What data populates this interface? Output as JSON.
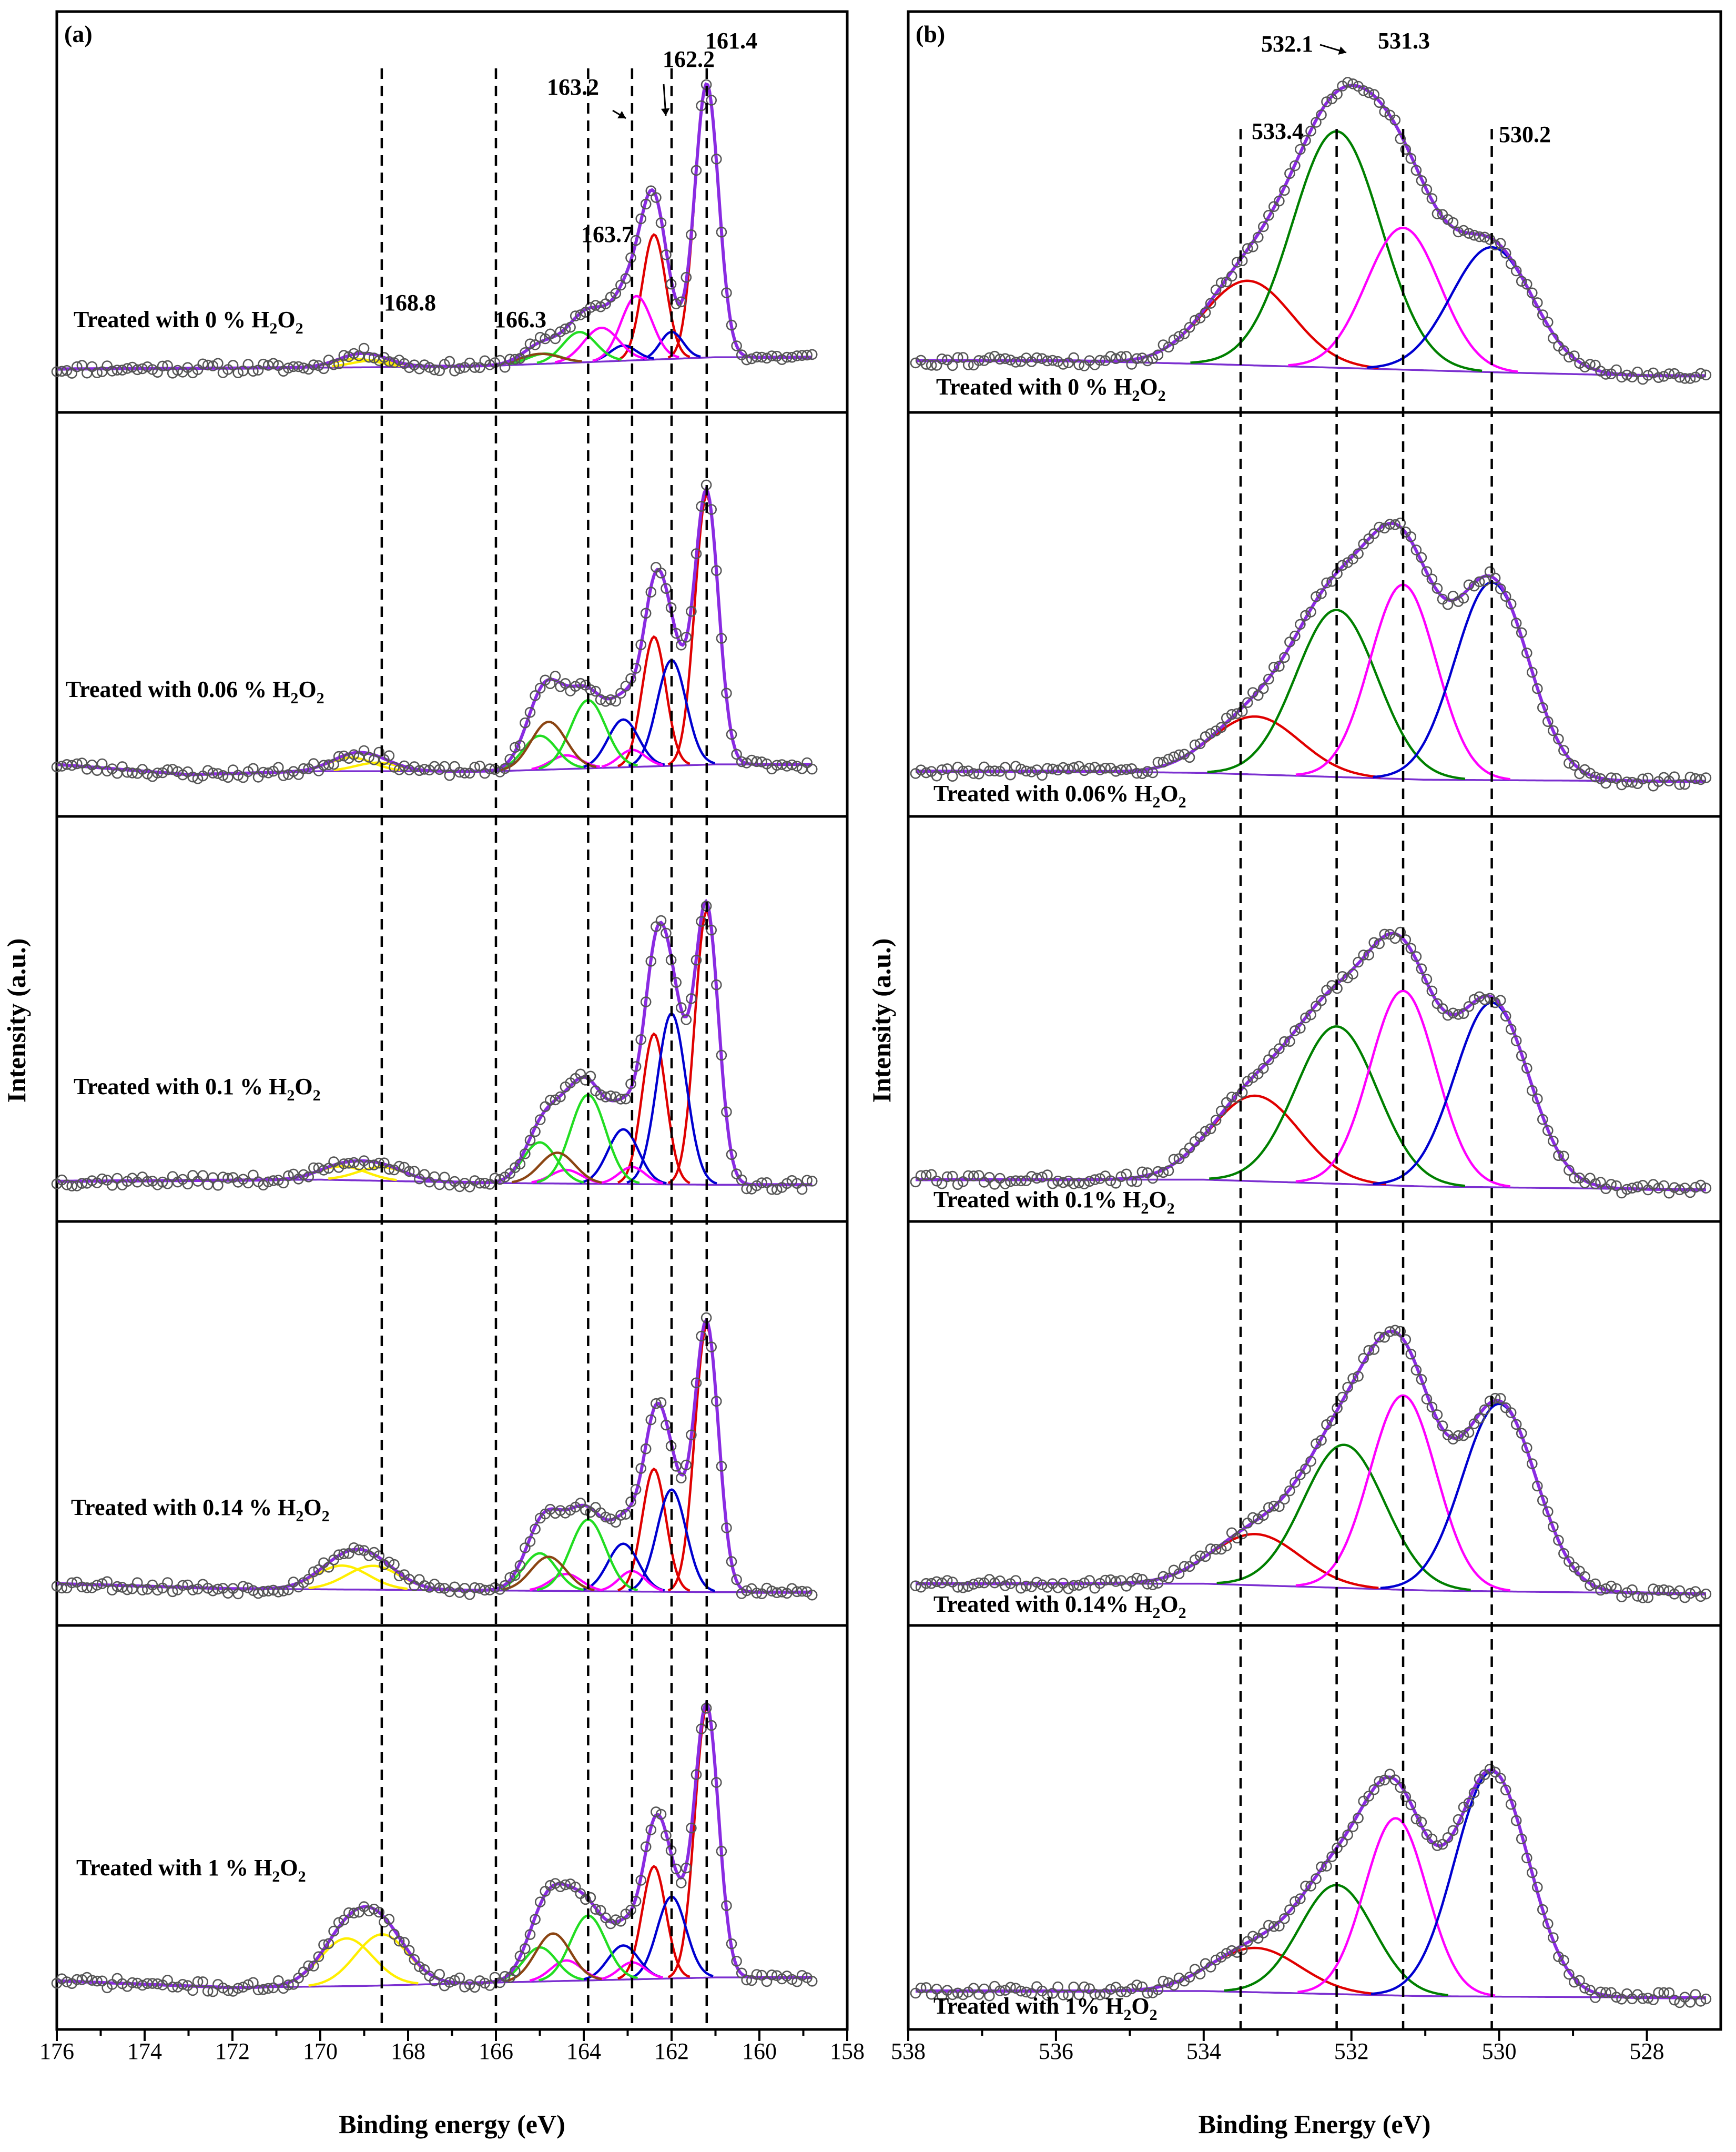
{
  "chart_data": [
    {
      "id": "a",
      "type": "line",
      "panel_label": "(a)",
      "title": "",
      "xlabel": "Binding energy (eV)",
      "ylabel": "Intensity (a.u.)",
      "xlim": [
        176,
        158
      ],
      "xticks": [
        176,
        174,
        172,
        170,
        168,
        166,
        164,
        162,
        160,
        158
      ],
      "reference_lines": [
        168.6,
        166.0,
        163.9,
        162.9,
        162.0,
        161.2
      ],
      "peak_labels": [
        {
          "text": "161.4",
          "x": 161.2
        },
        {
          "text": "162.2",
          "x": 162.0
        },
        {
          "text": "163.2",
          "x": 162.9
        },
        {
          "text": "163.7",
          "x": 163.9
        },
        {
          "text": "166.3",
          "x": 166.0
        },
        {
          "text": "168.8",
          "x": 168.6
        }
      ],
      "component_colors": {
        "S1": "#e00000",
        "S2": "#0000d0",
        "S3": "#ff00ff",
        "S4": "#22dd22",
        "S5": "#8b4513",
        "S6": "#ffee00"
      },
      "series": [
        {
          "name": "Treated with 0 % H2O2",
          "label": "Treated with 0 % H",
          "label_sub1": "2",
          "label_mid": "O",
          "label_sub2": "2",
          "noise_seed": 11,
          "baseline": [
            [
              176,
              0.035
            ],
            [
              169,
              0.04
            ],
            [
              166,
              0.045
            ],
            [
              161,
              0.07
            ],
            [
              158.8,
              0.07
            ]
          ],
          "components": [
            {
              "key": "S1",
              "center": 161.2,
              "height": 0.81,
              "width": 0.27
            },
            {
              "key": "S1",
              "center": 162.4,
              "height": 0.37,
              "width": 0.27
            },
            {
              "key": "S2",
              "center": 162.0,
              "height": 0.08,
              "width": 0.26
            },
            {
              "key": "S2",
              "center": 163.1,
              "height": 0.045,
              "width": 0.3
            },
            {
              "key": "S3",
              "center": 162.8,
              "height": 0.19,
              "width": 0.35
            },
            {
              "key": "S3",
              "center": 163.6,
              "height": 0.1,
              "width": 0.4
            },
            {
              "key": "S4",
              "center": 164.1,
              "height": 0.09,
              "width": 0.38
            },
            {
              "key": "S4",
              "center": 164.9,
              "height": 0.03,
              "width": 0.38
            },
            {
              "key": "S5",
              "center": 165.0,
              "height": 0.03,
              "width": 0.45
            },
            {
              "key": "S6",
              "center": 169.2,
              "height": 0.025,
              "width": 0.5
            },
            {
              "key": "S6",
              "center": 168.8,
              "height": 0.02,
              "width": 0.5
            }
          ]
        },
        {
          "name": "Treated with 0.06 % H2O2",
          "label": "Treated with 0.06 % H",
          "label_sub1": "2",
          "label_mid": "O",
          "label_sub2": "2",
          "noise_seed": 23,
          "baseline": [
            [
              176,
              0.06
            ],
            [
              173,
              0.03
            ],
            [
              170,
              0.04
            ],
            [
              166,
              0.04
            ],
            [
              161,
              0.06
            ],
            [
              159,
              0.06
            ]
          ],
          "components": [
            {
              "key": "S1",
              "center": 161.2,
              "height": 0.79,
              "width": 0.27
            },
            {
              "key": "S1",
              "center": 162.4,
              "height": 0.38,
              "width": 0.27
            },
            {
              "key": "S2",
              "center": 162.0,
              "height": 0.31,
              "width": 0.33
            },
            {
              "key": "S2",
              "center": 163.1,
              "height": 0.14,
              "width": 0.35
            },
            {
              "key": "S3",
              "center": 162.9,
              "height": 0.05,
              "width": 0.3
            },
            {
              "key": "S3",
              "center": 164.4,
              "height": 0.04,
              "width": 0.35
            },
            {
              "key": "S4",
              "center": 163.9,
              "height": 0.2,
              "width": 0.4
            },
            {
              "key": "S4",
              "center": 165.0,
              "height": 0.1,
              "width": 0.38
            },
            {
              "key": "S5",
              "center": 164.8,
              "height": 0.14,
              "width": 0.4
            },
            {
              "key": "S6",
              "center": 169.3,
              "height": 0.04,
              "width": 0.5
            },
            {
              "key": "S6",
              "center": 168.7,
              "height": 0.025,
              "width": 0.5
            }
          ]
        },
        {
          "name": "Treated with 0.1 % H2O2",
          "label": "Treated with 0.1 % H",
          "label_sub1": "2",
          "label_mid": "O",
          "label_sub2": "2",
          "noise_seed": 37,
          "baseline": [
            [
              176,
              0.025
            ],
            [
              170,
              0.03
            ],
            [
              166,
              0.02
            ],
            [
              161,
              0.015
            ],
            [
              158.8,
              0.015
            ]
          ],
          "components": [
            {
              "key": "S1",
              "center": 161.2,
              "height": 0.8,
              "width": 0.27
            },
            {
              "key": "S1",
              "center": 162.4,
              "height": 0.44,
              "width": 0.27
            },
            {
              "key": "S2",
              "center": 162.0,
              "height": 0.5,
              "width": 0.33
            },
            {
              "key": "S2",
              "center": 163.1,
              "height": 0.16,
              "width": 0.35
            },
            {
              "key": "S3",
              "center": 162.9,
              "height": 0.05,
              "width": 0.3
            },
            {
              "key": "S3",
              "center": 164.4,
              "height": 0.04,
              "width": 0.35
            },
            {
              "key": "S4",
              "center": 163.9,
              "height": 0.26,
              "width": 0.4
            },
            {
              "key": "S4",
              "center": 165.0,
              "height": 0.12,
              "width": 0.38
            },
            {
              "key": "S5",
              "center": 164.6,
              "height": 0.09,
              "width": 0.4
            },
            {
              "key": "S6",
              "center": 169.5,
              "height": 0.04,
              "width": 0.55
            },
            {
              "key": "S6",
              "center": 168.6,
              "height": 0.04,
              "width": 0.55
            }
          ]
        },
        {
          "name": "Treated with 0.14 % H2O2",
          "label": "Treated with 0.14 % H",
          "label_sub1": "2",
          "label_mid": "O",
          "label_sub2": "2",
          "noise_seed": 53,
          "baseline": [
            [
              176,
              0.03
            ],
            [
              172,
              0.015
            ],
            [
              166,
              0.01
            ],
            [
              161,
              0.005
            ],
            [
              158.8,
              0.005
            ]
          ],
          "components": [
            {
              "key": "S1",
              "center": 161.2,
              "height": 0.78,
              "width": 0.27
            },
            {
              "key": "S1",
              "center": 162.4,
              "height": 0.36,
              "width": 0.27
            },
            {
              "key": "S2",
              "center": 162.0,
              "height": 0.3,
              "width": 0.33
            },
            {
              "key": "S2",
              "center": 163.1,
              "height": 0.14,
              "width": 0.35
            },
            {
              "key": "S3",
              "center": 162.9,
              "height": 0.06,
              "width": 0.3
            },
            {
              "key": "S3",
              "center": 164.4,
              "height": 0.05,
              "width": 0.35
            },
            {
              "key": "S4",
              "center": 163.9,
              "height": 0.21,
              "width": 0.4
            },
            {
              "key": "S4",
              "center": 165.0,
              "height": 0.11,
              "width": 0.38
            },
            {
              "key": "S5",
              "center": 164.8,
              "height": 0.1,
              "width": 0.4
            },
            {
              "key": "S6",
              "center": 169.5,
              "height": 0.07,
              "width": 0.6
            },
            {
              "key": "S6",
              "center": 168.8,
              "height": 0.07,
              "width": 0.6
            }
          ]
        },
        {
          "name": "Treated with 1 % H2O2",
          "label": "Treated with 1 % H",
          "label_sub1": "2",
          "label_mid": "O",
          "label_sub2": "2",
          "noise_seed": 71,
          "baseline": [
            [
              176,
              0.05
            ],
            [
              172,
              0.03
            ],
            [
              169,
              0.035
            ],
            [
              166,
              0.045
            ],
            [
              161,
              0.06
            ],
            [
              158.8,
              0.06
            ]
          ],
          "components": [
            {
              "key": "S1",
              "center": 161.2,
              "height": 0.79,
              "width": 0.27
            },
            {
              "key": "S1",
              "center": 162.4,
              "height": 0.33,
              "width": 0.27
            },
            {
              "key": "S2",
              "center": 162.0,
              "height": 0.24,
              "width": 0.33
            },
            {
              "key": "S2",
              "center": 163.1,
              "height": 0.1,
              "width": 0.35
            },
            {
              "key": "S3",
              "center": 162.9,
              "height": 0.05,
              "width": 0.3
            },
            {
              "key": "S3",
              "center": 164.4,
              "height": 0.06,
              "width": 0.35
            },
            {
              "key": "S4",
              "center": 163.9,
              "height": 0.19,
              "width": 0.4
            },
            {
              "key": "S4",
              "center": 165.0,
              "height": 0.1,
              "width": 0.38
            },
            {
              "key": "S5",
              "center": 164.7,
              "height": 0.14,
              "width": 0.4
            },
            {
              "key": "S6",
              "center": 169.4,
              "height": 0.14,
              "width": 0.6
            },
            {
              "key": "S6",
              "center": 168.6,
              "height": 0.15,
              "width": 0.6
            }
          ]
        }
      ]
    },
    {
      "id": "b",
      "type": "line",
      "panel_label": "(b)",
      "title": "",
      "xlabel": "Binding Energy (eV)",
      "ylabel": "Intensity (a.u.)",
      "xlim": [
        538,
        527
      ],
      "xticks": [
        538,
        536,
        534,
        532,
        530,
        528
      ],
      "reference_lines": [
        533.5,
        532.2,
        531.3,
        530.1
      ],
      "peak_labels": [
        {
          "text": "532.1",
          "x": 532.2
        },
        {
          "text": "531.3",
          "x": 531.3
        },
        {
          "text": "533.4",
          "x": 533.5
        },
        {
          "text": "530.2",
          "x": 530.1
        }
      ],
      "component_colors": {
        "O1": "#e00000",
        "O2": "#008000",
        "O3": "#ff00ff",
        "O4": "#0000d0"
      },
      "series": [
        {
          "name": "Treated with 0 % H2O2",
          "label": "Treated with 0 % H",
          "label_sub1": "2",
          "label_mid": "O",
          "label_sub2": "2",
          "noise_seed": 91,
          "baseline": [
            [
              538,
              0.06
            ],
            [
              536,
              0.06
            ],
            [
              534,
              0.05
            ],
            [
              530,
              0.025
            ],
            [
              528,
              0.015
            ],
            [
              527.2,
              0.015
            ]
          ],
          "components": [
            {
              "key": "O1",
              "center": 533.4,
              "height": 0.25,
              "width": 0.6
            },
            {
              "key": "O2",
              "center": 532.2,
              "height": 0.7,
              "width": 0.6
            },
            {
              "key": "O3",
              "center": 531.3,
              "height": 0.42,
              "width": 0.5
            },
            {
              "key": "O4",
              "center": 530.1,
              "height": 0.37,
              "width": 0.55
            }
          ]
        },
        {
          "name": "Treated with 0.06% H2O2",
          "label": "Treated with 0.06% H",
          "label_sub1": "2",
          "label_mid": "O",
          "label_sub2": "2",
          "noise_seed": 103,
          "baseline": [
            [
              538,
              0.04
            ],
            [
              536,
              0.04
            ],
            [
              534,
              0.035
            ],
            [
              531,
              0.015
            ],
            [
              527.2,
              0.01
            ]
          ],
          "components": [
            {
              "key": "O1",
              "center": 533.3,
              "height": 0.17,
              "width": 0.6
            },
            {
              "key": "O2",
              "center": 532.2,
              "height": 0.49,
              "width": 0.55
            },
            {
              "key": "O3",
              "center": 531.3,
              "height": 0.57,
              "width": 0.45
            },
            {
              "key": "O4",
              "center": 530.1,
              "height": 0.58,
              "width": 0.5
            }
          ]
        },
        {
          "name": "Treated with 0.1% H2O2",
          "label": "Treated with 0.1% H",
          "label_sub1": "2",
          "label_mid": "O",
          "label_sub2": "2",
          "noise_seed": 117,
          "baseline": [
            [
              538,
              0.03
            ],
            [
              534,
              0.03
            ],
            [
              531,
              0.01
            ],
            [
              527.2,
              0.0
            ]
          ],
          "components": [
            {
              "key": "O1",
              "center": 533.3,
              "height": 0.25,
              "width": 0.6
            },
            {
              "key": "O2",
              "center": 532.2,
              "height": 0.46,
              "width": 0.55
            },
            {
              "key": "O3",
              "center": 531.3,
              "height": 0.57,
              "width": 0.45
            },
            {
              "key": "O4",
              "center": 530.1,
              "height": 0.54,
              "width": 0.5
            }
          ]
        },
        {
          "name": "Treated with 0.14% H2O2",
          "label": "Treated with 0.14% H",
          "label_sub1": "2",
          "label_mid": "O",
          "label_sub2": "2",
          "noise_seed": 131,
          "baseline": [
            [
              538,
              0.03
            ],
            [
              534,
              0.03
            ],
            [
              531,
              0.01
            ],
            [
              527.2,
              0.0
            ]
          ],
          "components": [
            {
              "key": "O1",
              "center": 533.3,
              "height": 0.15,
              "width": 0.6
            },
            {
              "key": "O2",
              "center": 532.1,
              "height": 0.42,
              "width": 0.55
            },
            {
              "key": "O3",
              "center": 531.3,
              "height": 0.57,
              "width": 0.45
            },
            {
              "key": "O4",
              "center": 530.0,
              "height": 0.55,
              "width": 0.5
            }
          ]
        },
        {
          "name": "Treated with 1% H2O2",
          "label": "Treated with 1% H",
          "label_sub1": "2",
          "label_mid": "O",
          "label_sub2": "2",
          "noise_seed": 149,
          "baseline": [
            [
              538,
              0.02
            ],
            [
              534,
              0.02
            ],
            [
              531,
              0.005
            ],
            [
              527.2,
              0.0
            ]
          ],
          "components": [
            {
              "key": "O1",
              "center": 533.3,
              "height": 0.13,
              "width": 0.6
            },
            {
              "key": "O2",
              "center": 532.2,
              "height": 0.32,
              "width": 0.5
            },
            {
              "key": "O3",
              "center": 531.4,
              "height": 0.52,
              "width": 0.42
            },
            {
              "key": "O4",
              "center": 530.1,
              "height": 0.66,
              "width": 0.5
            }
          ]
        }
      ]
    }
  ]
}
